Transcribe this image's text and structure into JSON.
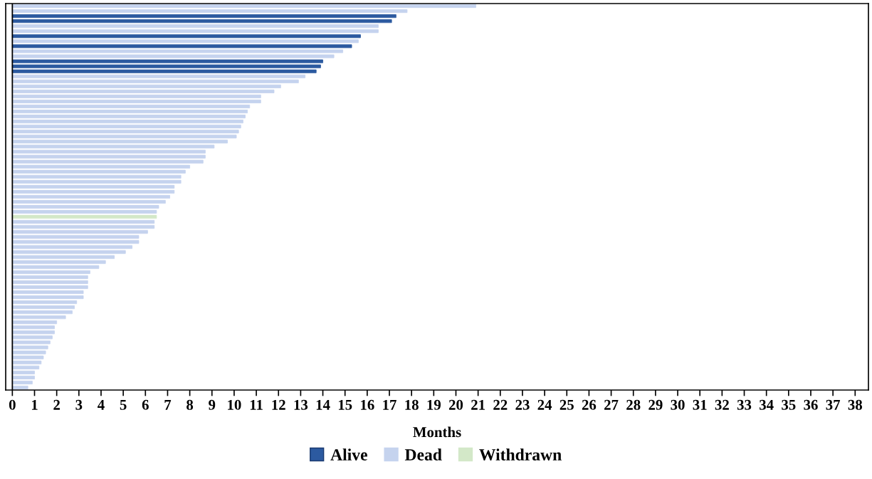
{
  "chart_data": {
    "type": "bar",
    "orientation": "horizontal",
    "xlabel": "Months",
    "categories": [
      null,
      null,
      null,
      null,
      null,
      null,
      null,
      null,
      null,
      null,
      null,
      null,
      null,
      null,
      null,
      null,
      null,
      null,
      null,
      null,
      null,
      null,
      null,
      null,
      null,
      null,
      null,
      null,
      null,
      null,
      null,
      null,
      null,
      null,
      null,
      null,
      null,
      null,
      null,
      null,
      null,
      null,
      null,
      null,
      null,
      null,
      null,
      null,
      null,
      null,
      null,
      null,
      null,
      null,
      null,
      null,
      null,
      null,
      null,
      null,
      null,
      null,
      null,
      null,
      null,
      null,
      null,
      null,
      null,
      null,
      null,
      null,
      null,
      null,
      null,
      null,
      null
    ],
    "series": [
      {
        "name": "Alive",
        "color": "#2c5aa0",
        "values": [
          null,
          null,
          17.3,
          17.1,
          null,
          null,
          15.7,
          null,
          15.3,
          null,
          null,
          14.0,
          13.9,
          13.7,
          null,
          null,
          null,
          null,
          null,
          null,
          null,
          null,
          null,
          null,
          null,
          null,
          null,
          null,
          null,
          null,
          null,
          null,
          null,
          null,
          null,
          null,
          null,
          null,
          null,
          null,
          null,
          null,
          null,
          null,
          null,
          null,
          null,
          null,
          null,
          null,
          null,
          null,
          null,
          null,
          null,
          null,
          null,
          null,
          null,
          null,
          null,
          null,
          null,
          null,
          null,
          null,
          null,
          null,
          null,
          null,
          null,
          null,
          null,
          null,
          null,
          null,
          null
        ]
      },
      {
        "name": "Dead",
        "color": "#c5d3ee",
        "values": [
          20.9,
          17.8,
          null,
          null,
          16.5,
          16.5,
          null,
          15.6,
          null,
          14.9,
          14.5,
          null,
          null,
          null,
          13.2,
          12.9,
          12.1,
          11.8,
          11.2,
          11.2,
          10.7,
          10.6,
          10.5,
          10.4,
          10.3,
          10.2,
          10.1,
          9.7,
          9.1,
          8.7,
          8.7,
          8.6,
          8.0,
          7.8,
          7.6,
          7.6,
          7.3,
          7.3,
          7.1,
          6.9,
          6.6,
          6.5,
          null,
          6.4,
          6.4,
          6.1,
          5.7,
          5.7,
          5.4,
          5.1,
          4.6,
          4.2,
          3.9,
          3.5,
          3.4,
          3.4,
          3.4,
          3.2,
          3.2,
          2.9,
          2.8,
          2.7,
          2.4,
          2.0,
          1.9,
          1.9,
          1.8,
          1.7,
          1.6,
          1.5,
          1.4,
          1.3,
          1.2,
          1.0,
          1.0,
          0.9,
          0.7
        ]
      },
      {
        "name": "Withdrawn",
        "color": "#d3e8c8",
        "values": [
          null,
          null,
          null,
          null,
          null,
          null,
          null,
          null,
          null,
          null,
          null,
          null,
          null,
          null,
          null,
          null,
          null,
          null,
          null,
          null,
          null,
          null,
          null,
          null,
          null,
          null,
          null,
          null,
          null,
          null,
          null,
          null,
          null,
          null,
          null,
          null,
          null,
          null,
          null,
          null,
          null,
          null,
          6.5,
          null,
          null,
          null,
          null,
          null,
          null,
          null,
          null,
          null,
          null,
          null,
          null,
          null,
          null,
          null,
          null,
          null,
          null,
          null,
          null,
          null,
          null,
          null,
          null,
          null,
          null,
          null,
          null,
          null,
          null,
          null,
          null,
          null,
          null
        ]
      }
    ],
    "xlim": [
      -0.3,
      38.6
    ],
    "xticks": [
      0,
      1,
      2,
      3,
      4,
      5,
      6,
      7,
      8,
      9,
      10,
      11,
      12,
      13,
      14,
      15,
      16,
      17,
      18,
      19,
      20,
      21,
      22,
      23,
      24,
      25,
      26,
      27,
      28,
      29,
      30,
      31,
      32,
      33,
      34,
      35,
      36,
      37,
      38
    ],
    "ref_lines": [
      {
        "axis": "x",
        "value": 0,
        "color": "#000000"
      }
    ],
    "tick_labels": "x",
    "grid": false,
    "legend": "bottom"
  }
}
